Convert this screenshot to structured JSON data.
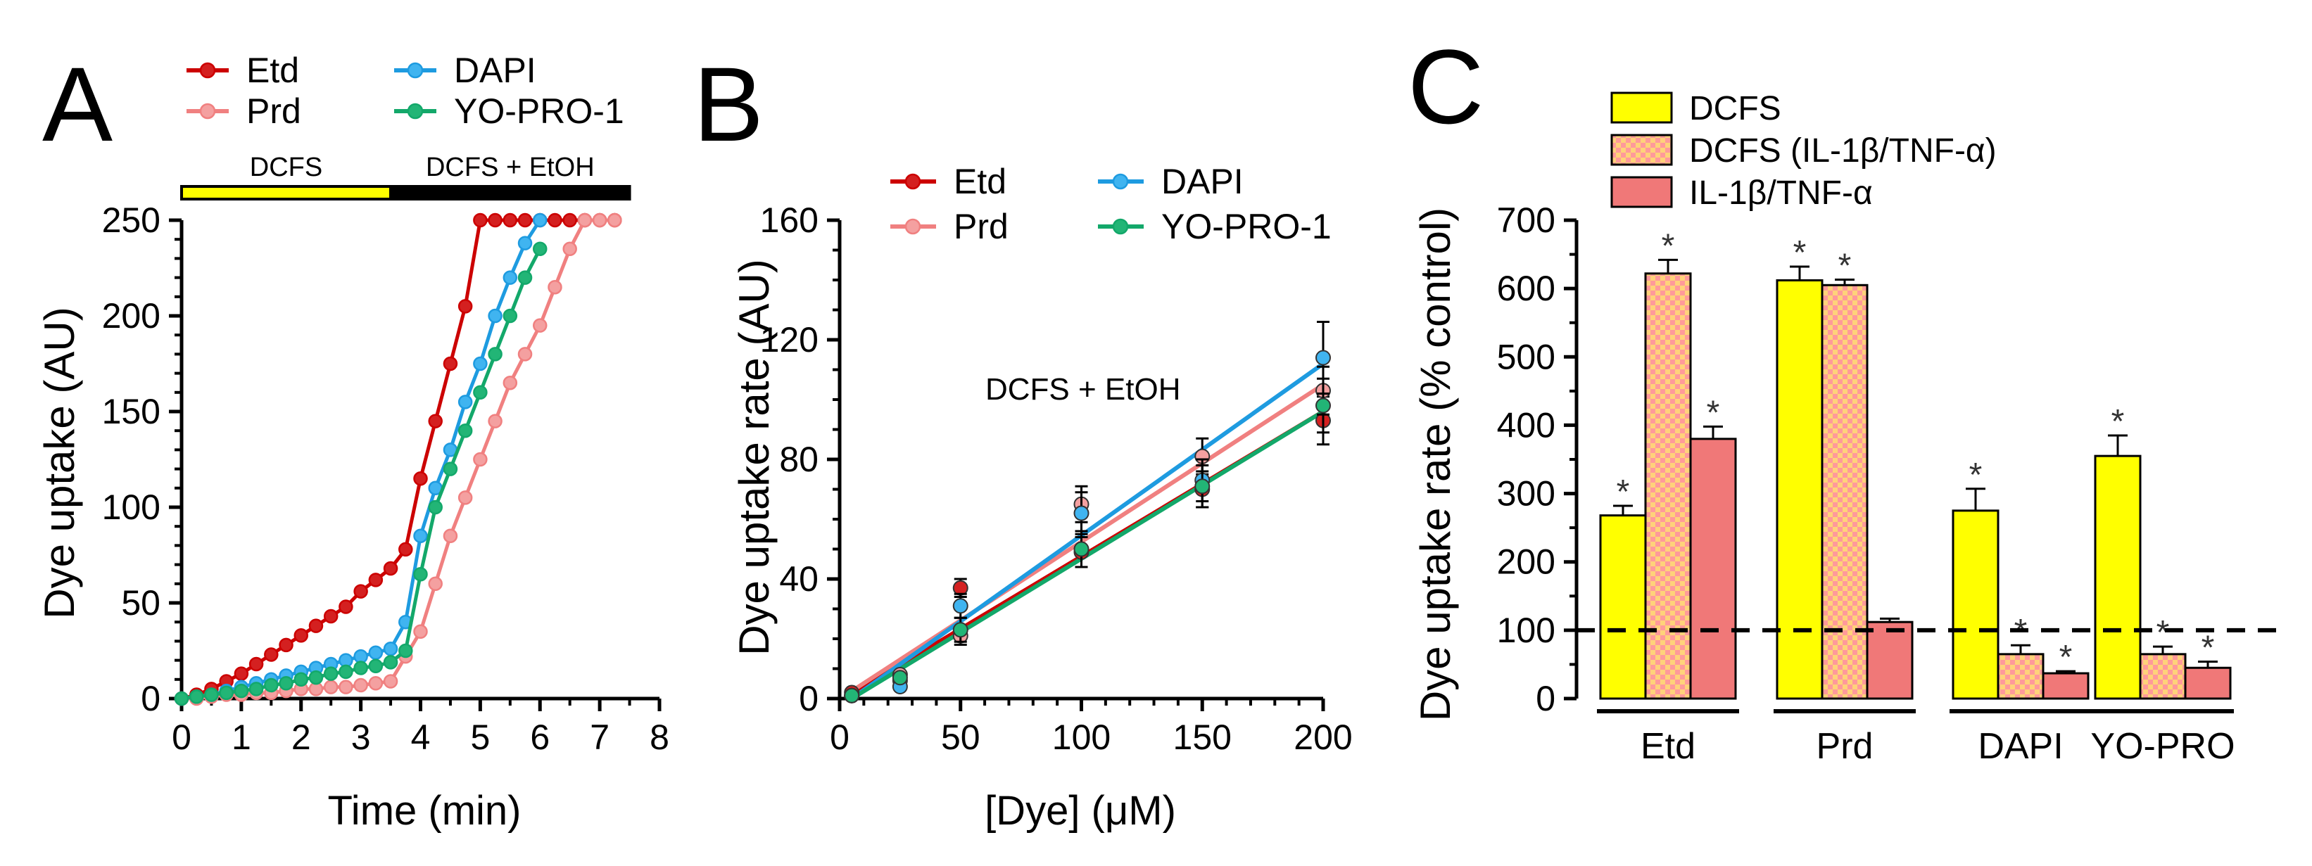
{
  "chart_data": [
    {
      "panel": "A",
      "type": "line",
      "panel_label": "A",
      "xlabel": "Time (min)",
      "ylabel": "Dye uptake (AU)",
      "xlim": [
        0,
        8
      ],
      "ylim": [
        0,
        250
      ],
      "xticks": [
        0,
        1,
        2,
        3,
        4,
        5,
        6,
        7,
        8
      ],
      "yticks": [
        0,
        50,
        100,
        150,
        200,
        250
      ],
      "phases": [
        {
          "label": "DCFS",
          "start": 0,
          "end": 3.5,
          "color": "#ffff00"
        },
        {
          "label": "DCFS + EtOH",
          "start": 3.5,
          "end": 7.5,
          "color": "#000000"
        }
      ],
      "series": [
        {
          "name": "Etd",
          "color": "#cc0000",
          "fill": "#d42020",
          "x": [
            0,
            0.25,
            0.5,
            0.75,
            1,
            1.25,
            1.5,
            1.75,
            2,
            2.25,
            2.5,
            2.75,
            3,
            3.25,
            3.5,
            3.75,
            4,
            4.25,
            4.5,
            4.75,
            5,
            5.25,
            5.5,
            5.75,
            6,
            6.25,
            6.5,
            6.75,
            7,
            7.25
          ],
          "y": [
            0,
            2,
            5,
            9,
            13,
            18,
            23,
            28,
            33,
            38,
            43,
            48,
            56,
            62,
            68,
            78,
            115,
            145,
            175,
            205,
            250,
            250,
            250,
            250,
            250,
            250,
            250,
            250,
            250,
            250
          ]
        },
        {
          "name": "Prd",
          "color": "#f08080",
          "fill": "#f4a0a0",
          "x": [
            0,
            0.25,
            0.5,
            0.75,
            1,
            1.25,
            1.5,
            1.75,
            2,
            2.25,
            2.5,
            2.75,
            3,
            3.25,
            3.5,
            3.75,
            4,
            4.25,
            4.5,
            4.75,
            5,
            5.25,
            5.5,
            5.75,
            6,
            6.25,
            6.5,
            6.75,
            7,
            7.25
          ],
          "y": [
            0,
            0,
            1,
            2,
            2,
            3,
            3,
            4,
            5,
            5,
            6,
            6,
            7,
            8,
            9,
            22,
            35,
            60,
            85,
            105,
            125,
            145,
            165,
            180,
            195,
            215,
            235,
            250,
            250,
            250
          ]
        },
        {
          "name": "DAPI",
          "color": "#1e9be0",
          "fill": "#40b4f0",
          "x": [
            0,
            0.25,
            0.5,
            0.75,
            1,
            1.25,
            1.5,
            1.75,
            2,
            2.25,
            2.5,
            2.75,
            3,
            3.25,
            3.5,
            3.75,
            4,
            4.25,
            4.5,
            4.75,
            5,
            5.25,
            5.5,
            5.75,
            6
          ],
          "y": [
            0,
            1,
            2,
            4,
            6,
            8,
            10,
            12,
            14,
            16,
            18,
            20,
            22,
            24,
            26,
            40,
            85,
            110,
            130,
            155,
            175,
            200,
            220,
            238,
            250
          ]
        },
        {
          "name": "YO-PRO-1",
          "color": "#13a86a",
          "fill": "#22b576",
          "x": [
            0,
            0.25,
            0.5,
            0.75,
            1,
            1.25,
            1.5,
            1.75,
            2,
            2.25,
            2.5,
            2.75,
            3,
            3.25,
            3.5,
            3.75,
            4,
            4.25,
            4.5,
            4.75,
            5,
            5.25,
            5.5,
            5.75,
            6
          ],
          "y": [
            0,
            1,
            2,
            3,
            4,
            5,
            7,
            8,
            10,
            11,
            13,
            14,
            16,
            17,
            19,
            25,
            65,
            100,
            120,
            140,
            160,
            180,
            200,
            220,
            235
          ]
        }
      ]
    },
    {
      "panel": "B",
      "type": "scatter",
      "panel_label": "B",
      "xlabel": "[Dye] (μM)",
      "ylabel": "Dye uptake rate (AU)",
      "xlim": [
        0,
        200
      ],
      "ylim": [
        0,
        160
      ],
      "xticks": [
        0,
        50,
        100,
        150,
        200
      ],
      "yticks": [
        0,
        40,
        80,
        120,
        160
      ],
      "annotation": "DCFS + EtOH",
      "x": [
        5,
        25,
        50,
        100,
        150,
        200
      ],
      "series": [
        {
          "name": "Etd",
          "color": "#cc0000",
          "fill": "#d42020",
          "values": [
            2,
            6,
            37,
            49,
            70,
            93
          ],
          "errors": [
            0,
            0,
            3,
            5,
            6,
            8
          ],
          "fit": [
            1.5,
            96
          ]
        },
        {
          "name": "Prd",
          "color": "#f08080",
          "fill": "#f4a0a0",
          "values": [
            1,
            8,
            21,
            65,
            81,
            103
          ],
          "errors": [
            0,
            0,
            3,
            6,
            6,
            8
          ],
          "fit": [
            2.5,
            105
          ]
        },
        {
          "name": "DAPI",
          "color": "#1e9be0",
          "fill": "#40b4f0",
          "values": [
            1,
            4,
            31,
            62,
            73,
            114
          ],
          "errors": [
            0,
            0,
            4,
            7,
            7,
            12
          ],
          "fit": [
            0,
            112
          ]
        },
        {
          "name": "YO-PRO-1",
          "color": "#13a86a",
          "fill": "#22b576",
          "values": [
            1,
            7,
            23,
            50,
            71,
            98
          ],
          "errors": [
            0,
            0,
            4,
            6,
            7,
            9
          ],
          "fit": [
            0,
            96
          ]
        }
      ]
    },
    {
      "panel": "C",
      "type": "bar",
      "panel_label": "C",
      "ylabel": "Dye uptake rate (% control)",
      "ylim": [
        0,
        700
      ],
      "yticks": [
        0,
        100,
        200,
        300,
        400,
        500,
        600,
        700
      ],
      "reference_line": 100,
      "categories": [
        "Etd",
        "Prd",
        "DAPI",
        "YO-PRO"
      ],
      "significance_marker": "*",
      "series": [
        {
          "name": "DCFS",
          "color": "#ffff00",
          "pattern": "solid",
          "values": [
            268,
            612,
            275,
            355
          ],
          "errors": [
            14,
            20,
            32,
            30
          ],
          "significant": [
            true,
            true,
            true,
            true
          ]
        },
        {
          "name": "DCFS (IL-1β/TNF-α)",
          "color": "#ffb8a8",
          "pattern": "checker",
          "values": [
            622,
            605,
            65,
            65
          ],
          "errors": [
            20,
            8,
            13,
            11
          ],
          "significant": [
            true,
            true,
            true,
            true
          ]
        },
        {
          "name": "IL-1β/TNF-α",
          "color": "#f07878",
          "pattern": "solid",
          "values": [
            380,
            112,
            37,
            45
          ],
          "errors": [
            18,
            5,
            3,
            9
          ],
          "significant": [
            true,
            false,
            true,
            true
          ]
        }
      ]
    }
  ]
}
